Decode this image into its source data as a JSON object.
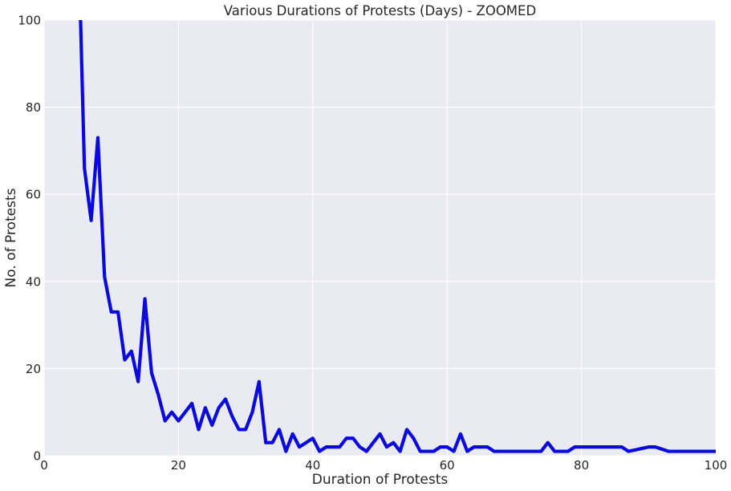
{
  "chart_data": {
    "type": "line",
    "title": "Various Durations of Protests (Days) - ZOOMED",
    "xlabel": "Duration of Protests",
    "ylabel": "No. of Protests",
    "xlim": [
      0,
      100
    ],
    "ylim": [
      0,
      100
    ],
    "xticks": [
      0,
      20,
      40,
      60,
      80,
      100
    ],
    "yticks": [
      0,
      20,
      40,
      60,
      80,
      100
    ],
    "grid": true,
    "legend": "none",
    "colors": {
      "line": "#0a0adc",
      "plot_background": "#eaeaf2",
      "grid": "#ffffff",
      "text": "#262626"
    },
    "series": [
      {
        "x": [
          5,
          6,
          7,
          8,
          9,
          10,
          11,
          12,
          13,
          14,
          15,
          16,
          17,
          18,
          19,
          20,
          21,
          22,
          23,
          24,
          25,
          26,
          27,
          28,
          29,
          30,
          31,
          32,
          33,
          34,
          35,
          36,
          37,
          38,
          39,
          40,
          41,
          42,
          43,
          44,
          45,
          46,
          47,
          48,
          49,
          50,
          51,
          52,
          53,
          54,
          55,
          56,
          57,
          58,
          59,
          60,
          61,
          62,
          63,
          64,
          65,
          66,
          67,
          68,
          69,
          70,
          71,
          72,
          73,
          74,
          75,
          76,
          77,
          78,
          79,
          80,
          81,
          82,
          83,
          84,
          85,
          86,
          87,
          88,
          89,
          90,
          91,
          92,
          93,
          94,
          95,
          96,
          97,
          98,
          99,
          100
        ],
        "y": [
          125,
          66,
          54,
          73,
          41,
          33,
          33,
          22,
          24,
          17,
          36,
          19,
          14,
          8,
          10,
          8,
          10,
          12,
          6,
          11,
          7,
          11,
          13,
          9,
          6,
          6,
          10,
          17,
          3,
          3,
          6,
          1,
          5,
          2,
          3,
          4,
          1,
          2,
          2,
          2,
          4,
          4,
          2,
          1,
          3,
          5,
          2,
          3,
          1,
          6,
          4,
          1,
          1,
          1,
          2,
          2,
          1,
          5,
          1,
          2,
          2,
          2,
          1,
          1,
          1,
          1,
          1,
          1,
          1,
          1,
          3,
          1,
          1,
          1,
          2,
          2,
          2,
          2,
          2,
          2,
          2,
          2,
          1,
          1.33,
          1.67,
          2,
          2,
          1.5,
          1,
          1,
          1,
          1,
          1,
          1,
          1,
          1
        ]
      }
    ]
  }
}
